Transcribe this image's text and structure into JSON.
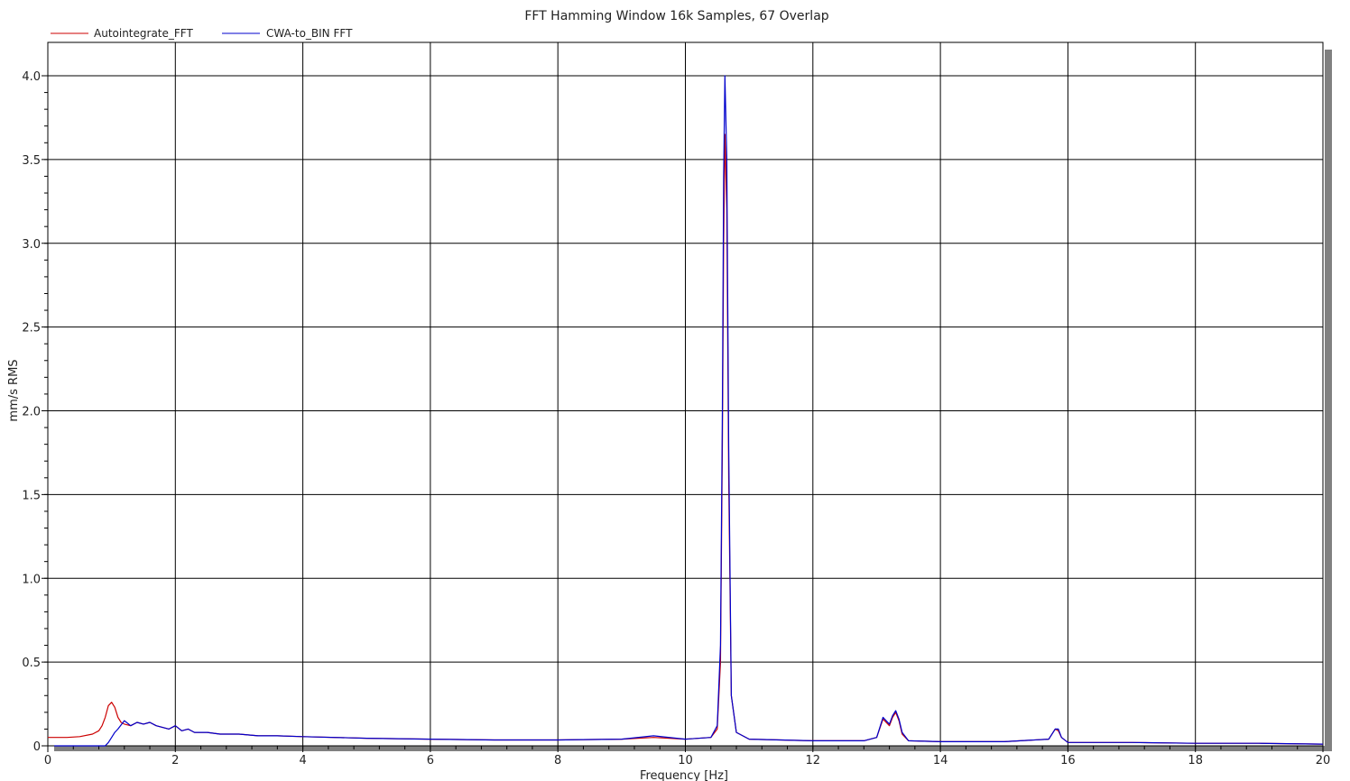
{
  "chart_data": {
    "type": "line",
    "title": "FFT Hamming Window 16k Samples, 67 Overlap",
    "xlabel": "Frequency [Hz]",
    "ylabel": "mm/s RMS",
    "xlim": [
      0,
      20
    ],
    "ylim": [
      0,
      4.0
    ],
    "grid": true,
    "legend_position": "top-left",
    "x_ticks": [
      "0",
      "2",
      "4",
      "6",
      "8",
      "10",
      "12",
      "14",
      "16",
      "18",
      "20"
    ],
    "y_ticks": [
      "0",
      "0.5",
      "1.0",
      "1.5",
      "2.0",
      "2.5",
      "3.0",
      "3.5",
      "4.0"
    ],
    "series": [
      {
        "name": "Autointegrate_FFT",
        "color": "#cc0000",
        "x": [
          0,
          0.3,
          0.5,
          0.7,
          0.8,
          0.85,
          0.9,
          0.95,
          1.0,
          1.05,
          1.1,
          1.15,
          1.2,
          1.3,
          1.4,
          1.5,
          1.6,
          1.7,
          1.8,
          1.9,
          2.0,
          2.1,
          2.2,
          2.3,
          2.5,
          2.7,
          3.0,
          3.3,
          3.6,
          4.0,
          5.0,
          6.0,
          7.0,
          8.0,
          9.0,
          9.5,
          10.0,
          10.4,
          10.5,
          10.55,
          10.58,
          10.6,
          10.62,
          10.65,
          10.68,
          10.72,
          10.8,
          11.0,
          12.0,
          12.8,
          13.0,
          13.1,
          13.2,
          13.25,
          13.3,
          13.35,
          13.4,
          13.5,
          14.0,
          15.0,
          15.7,
          15.8,
          15.85,
          15.9,
          16.0,
          17.0,
          18.0,
          19.0,
          20.0
        ],
        "values": [
          0.05,
          0.05,
          0.055,
          0.07,
          0.09,
          0.12,
          0.17,
          0.24,
          0.26,
          0.23,
          0.17,
          0.14,
          0.13,
          0.12,
          0.14,
          0.13,
          0.14,
          0.12,
          0.11,
          0.1,
          0.12,
          0.09,
          0.1,
          0.08,
          0.08,
          0.07,
          0.07,
          0.06,
          0.06,
          0.055,
          0.045,
          0.04,
          0.035,
          0.035,
          0.04,
          0.05,
          0.04,
          0.05,
          0.1,
          0.5,
          1.8,
          3.0,
          3.65,
          3.2,
          1.6,
          0.3,
          0.08,
          0.04,
          0.03,
          0.03,
          0.05,
          0.16,
          0.12,
          0.17,
          0.2,
          0.15,
          0.07,
          0.03,
          0.025,
          0.025,
          0.04,
          0.1,
          0.09,
          0.05,
          0.02,
          0.02,
          0.015,
          0.015,
          0.01
        ]
      },
      {
        "name": "CWA-to_BIN FFT",
        "color": "#0000cc",
        "x": [
          0.1,
          0.3,
          0.5,
          0.7,
          0.9,
          0.95,
          1.0,
          1.05,
          1.1,
          1.2,
          1.3,
          1.4,
          1.5,
          1.6,
          1.7,
          1.8,
          1.9,
          2.0,
          2.1,
          2.2,
          2.3,
          2.5,
          2.7,
          3.0,
          3.3,
          3.6,
          4.0,
          5.0,
          6.0,
          7.0,
          8.0,
          9.0,
          9.5,
          10.0,
          10.4,
          10.5,
          10.55,
          10.58,
          10.6,
          10.62,
          10.65,
          10.68,
          10.72,
          10.8,
          11.0,
          12.0,
          12.8,
          13.0,
          13.1,
          13.2,
          13.25,
          13.3,
          13.35,
          13.4,
          13.5,
          14.0,
          15.0,
          15.7,
          15.8,
          15.85,
          15.9,
          16.0,
          17.0,
          18.0,
          19.0,
          20.0
        ],
        "values": [
          0.0,
          0.0,
          0.0,
          0.0,
          0.0,
          0.02,
          0.05,
          0.08,
          0.1,
          0.15,
          0.12,
          0.14,
          0.13,
          0.14,
          0.12,
          0.11,
          0.1,
          0.12,
          0.09,
          0.1,
          0.08,
          0.08,
          0.07,
          0.07,
          0.06,
          0.06,
          0.055,
          0.045,
          0.04,
          0.035,
          0.035,
          0.04,
          0.06,
          0.04,
          0.05,
          0.12,
          0.6,
          2.0,
          3.4,
          4.0,
          3.5,
          1.8,
          0.3,
          0.08,
          0.04,
          0.03,
          0.03,
          0.05,
          0.17,
          0.13,
          0.18,
          0.21,
          0.16,
          0.08,
          0.03,
          0.025,
          0.025,
          0.04,
          0.1,
          0.1,
          0.05,
          0.02,
          0.02,
          0.015,
          0.015,
          0.01
        ]
      }
    ]
  }
}
